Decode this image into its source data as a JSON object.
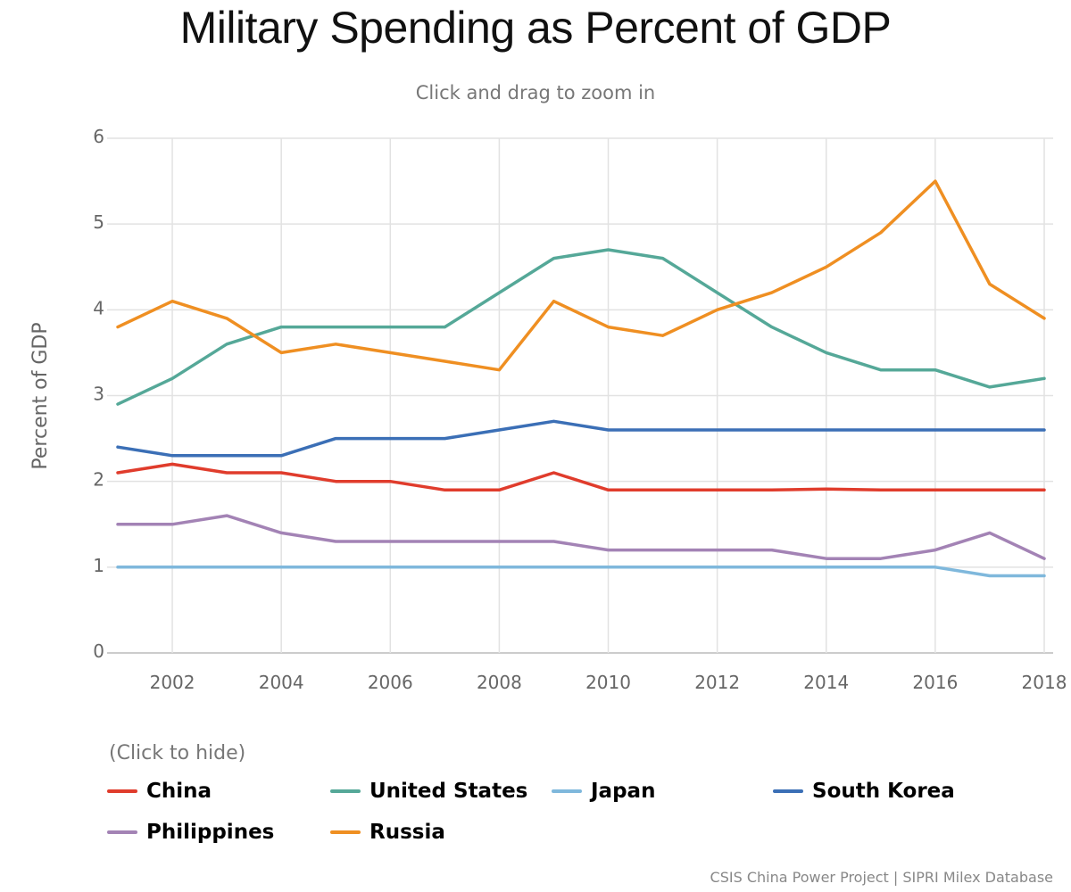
{
  "chart_data": {
    "type": "line",
    "title": "Military Spending as Percent of GDP",
    "subtitle": "Click and drag to zoom in",
    "ylabel": "Percent of GDP",
    "xlabel": "",
    "xlim": [
      2001,
      2018
    ],
    "ylim": [
      0,
      6
    ],
    "x_ticks": [
      2002,
      2004,
      2006,
      2008,
      2010,
      2012,
      2014,
      2016,
      2018
    ],
    "y_ticks": [
      0,
      1,
      2,
      3,
      4,
      5,
      6
    ],
    "grid": true,
    "legend_position": "bottom",
    "x": [
      2001,
      2002,
      2003,
      2004,
      2005,
      2006,
      2007,
      2008,
      2009,
      2010,
      2011,
      2012,
      2013,
      2014,
      2015,
      2016,
      2017,
      2018
    ],
    "series": [
      {
        "name": "China",
        "color": "#e03c2c",
        "values": [
          2.1,
          2.2,
          2.1,
          2.1,
          2.0,
          2.0,
          1.9,
          1.9,
          2.1,
          1.9,
          1.9,
          1.9,
          1.9,
          1.91,
          1.9,
          1.9,
          1.9,
          1.9
        ]
      },
      {
        "name": "United States",
        "color": "#55a898",
        "values": [
          2.9,
          3.2,
          3.6,
          3.8,
          3.8,
          3.8,
          3.8,
          4.2,
          4.6,
          4.7,
          4.6,
          4.2,
          3.8,
          3.5,
          3.3,
          3.3,
          3.1,
          3.2
        ]
      },
      {
        "name": "Japan",
        "color": "#7fb8dc",
        "values": [
          1.0,
          1.0,
          1.0,
          1.0,
          1.0,
          1.0,
          1.0,
          1.0,
          1.0,
          1.0,
          1.0,
          1.0,
          1.0,
          1.0,
          1.0,
          1.0,
          0.9,
          0.9
        ]
      },
      {
        "name": "South Korea",
        "color": "#3b6fb6",
        "values": [
          2.4,
          2.3,
          2.3,
          2.3,
          2.5,
          2.5,
          2.5,
          2.6,
          2.7,
          2.6,
          2.6,
          2.6,
          2.6,
          2.6,
          2.6,
          2.6,
          2.6,
          2.6
        ]
      },
      {
        "name": "Philippines",
        "color": "#a383b5",
        "values": [
          1.5,
          1.5,
          1.6,
          1.4,
          1.3,
          1.3,
          1.3,
          1.3,
          1.3,
          1.2,
          1.2,
          1.2,
          1.2,
          1.1,
          1.1,
          1.2,
          1.4,
          1.1
        ]
      },
      {
        "name": "Russia",
        "color": "#ef8f22",
        "values": [
          3.8,
          4.1,
          3.9,
          3.5,
          3.6,
          3.5,
          3.4,
          3.3,
          4.1,
          3.8,
          3.7,
          4.0,
          4.2,
          4.5,
          4.9,
          5.5,
          4.3,
          3.9
        ]
      }
    ]
  },
  "legend": {
    "hint": "(Click to hide)"
  },
  "footer": {
    "source": "CSIS China Power Project | SIPRI Milex Database"
  }
}
